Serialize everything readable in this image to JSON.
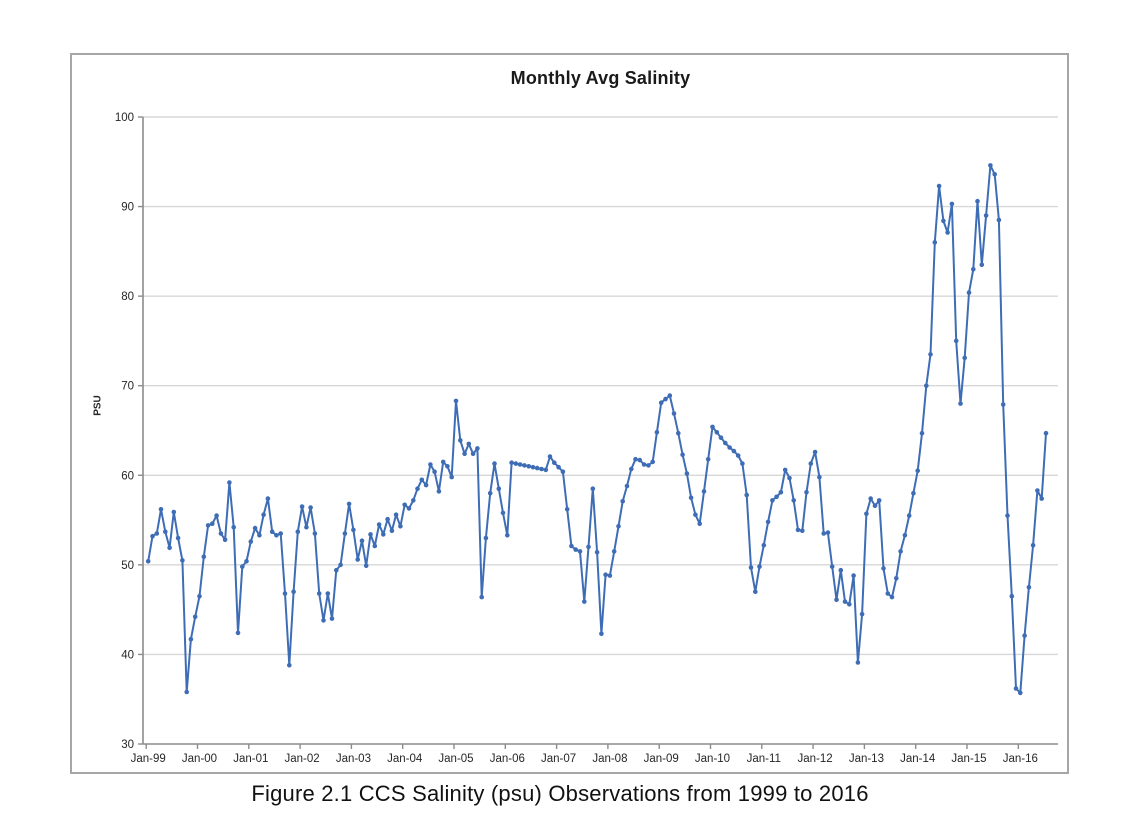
{
  "figure": {
    "title": "Monthly Avg Salinity",
    "y_axis_label": "PSU",
    "caption": "Figure 2.1   CCS Salinity (psu) Observations from 1999 to 2016"
  },
  "chart_data": {
    "type": "line",
    "title": "Monthly Avg Salinity",
    "ylabel": "PSU",
    "ylim": [
      30,
      100
    ],
    "y_ticks": [
      30,
      40,
      50,
      60,
      70,
      80,
      90,
      100
    ],
    "x_tick_labels": [
      "Jan-99",
      "Jan-00",
      "Jan-01",
      "Jan-02",
      "Jan-03",
      "Jan-04",
      "Jan-05",
      "Jan-06",
      "Jan-07",
      "Jan-08",
      "Jan-09",
      "Jan-10",
      "Jan-11",
      "Jan-12",
      "Jan-13",
      "Jan-14",
      "Jan-15",
      "Jan-16"
    ],
    "x_start_month": "Jan-1999",
    "x_end_month": "Jul-2016",
    "frequency": "monthly",
    "grid": true,
    "legend": false,
    "line_color": "#3e6db6",
    "gridline_color": "#d7d7d7",
    "axis_color": "#8c8c8c",
    "tick_label_color": "#262626",
    "series": [
      {
        "name": "Monthly Avg Salinity",
        "values": [
          50.4,
          53.2,
          53.5,
          56.2,
          53.7,
          51.9,
          55.9,
          53.0,
          50.5,
          35.8,
          41.7,
          44.2,
          46.5,
          50.9,
          54.4,
          54.6,
          55.5,
          53.5,
          52.8,
          59.2,
          54.2,
          42.4,
          49.8,
          50.4,
          52.6,
          54.1,
          53.3,
          55.6,
          57.4,
          53.7,
          53.3,
          53.5,
          46.8,
          38.8,
          47.0,
          53.7,
          56.5,
          54.2,
          56.4,
          53.5,
          46.8,
          43.8,
          46.8,
          44.0,
          49.4,
          50.0,
          53.5,
          56.8,
          53.9,
          50.6,
          52.7,
          49.9,
          53.4,
          52.1,
          54.5,
          53.4,
          55.1,
          53.8,
          55.6,
          54.3,
          56.7,
          56.3,
          57.2,
          58.5,
          59.5,
          58.9,
          61.2,
          60.4,
          58.2,
          61.5,
          61.0,
          59.8,
          68.3,
          63.9,
          62.4,
          63.5,
          62.4,
          63.0,
          46.4,
          53.0,
          58.0,
          61.3,
          58.5,
          55.8,
          53.3,
          61.4,
          61.3,
          61.2,
          61.1,
          61.0,
          60.9,
          60.8,
          60.7,
          60.6,
          62.1,
          61.4,
          60.9,
          60.4,
          56.2,
          52.1,
          51.7,
          51.5,
          45.9,
          52.0,
          58.5,
          51.4,
          42.3,
          48.9,
          48.8,
          51.5,
          54.3,
          57.1,
          58.8,
          60.7,
          61.8,
          61.7,
          61.2,
          61.1,
          61.5,
          64.8,
          68.1,
          68.5,
          68.9,
          66.9,
          64.7,
          62.3,
          60.2,
          57.5,
          55.6,
          54.6,
          58.2,
          61.8,
          65.4,
          64.8,
          64.2,
          63.6,
          63.1,
          62.7,
          62.2,
          61.3,
          57.8,
          49.7,
          47.0,
          49.8,
          52.2,
          54.8,
          57.2,
          57.6,
          58.1,
          60.6,
          59.7,
          57.2,
          53.9,
          53.8,
          58.1,
          61.3,
          62.6,
          59.8,
          53.5,
          53.6,
          49.8,
          46.1,
          49.4,
          45.9,
          45.6,
          48.8,
          39.1,
          44.5,
          55.7,
          57.4,
          56.6,
          57.2,
          49.6,
          46.8,
          46.4,
          48.5,
          51.5,
          53.3,
          55.5,
          58.0,
          60.5,
          64.7,
          70.0,
          73.5,
          86.0,
          92.3,
          88.4,
          87.1,
          90.3,
          75.0,
          68.0,
          73.1,
          80.4,
          83.0,
          90.6,
          83.5,
          89.0,
          94.6,
          93.6,
          88.5,
          67.9,
          55.5,
          46.5,
          36.2,
          35.7,
          42.1,
          47.5,
          52.2,
          58.3,
          57.4,
          64.7
        ]
      }
    ]
  }
}
